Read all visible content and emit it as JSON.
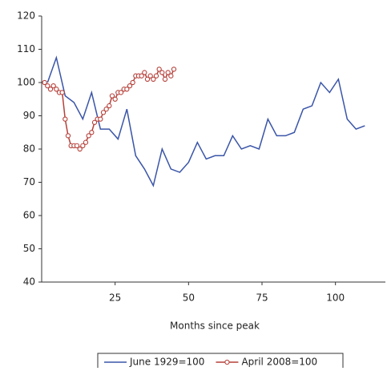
{
  "chart_data": {
    "type": "line",
    "x_label": "Months since peak",
    "xlim": [
      0,
      117
    ],
    "xticks": [
      25,
      50,
      75,
      100
    ],
    "ylim": [
      40,
      120
    ],
    "yticks": [
      40,
      50,
      60,
      70,
      80,
      90,
      100,
      110,
      120
    ],
    "legend": "bottom",
    "series": [
      {
        "name": "June 1929=100",
        "color": "#3a55a8",
        "marker": "none",
        "x": [
          2,
          5,
          8,
          11,
          14,
          17,
          20,
          23,
          26,
          29,
          32,
          35,
          38,
          41,
          44,
          47,
          50,
          53,
          56,
          59,
          62,
          65,
          68,
          71,
          74,
          77,
          80,
          83,
          86,
          89,
          92,
          95,
          98,
          101,
          104,
          107,
          110
        ],
        "values": [
          100,
          107.5,
          96,
          94,
          89,
          97,
          86,
          86,
          83,
          92,
          78,
          74,
          69,
          80,
          74,
          73,
          76,
          82,
          77,
          78,
          78,
          84,
          80,
          81,
          80,
          89,
          84,
          84,
          85,
          92,
          93,
          100,
          97,
          101,
          89,
          86,
          87
        ]
      },
      {
        "name": "April 2008=100",
        "color": "#b5403a",
        "marker": "circle",
        "x": [
          1,
          2,
          3,
          4,
          5,
          6,
          7,
          8,
          9,
          10,
          11,
          12,
          13,
          14,
          15,
          16,
          17,
          18,
          19,
          20,
          21,
          22,
          23,
          24,
          25,
          26,
          27,
          28,
          29,
          30,
          31,
          32,
          33,
          34,
          35,
          36,
          37,
          38,
          39,
          40,
          41,
          42,
          43,
          44,
          45
        ],
        "values": [
          100,
          99,
          98,
          99,
          98,
          97,
          97,
          89,
          84,
          81,
          81,
          81,
          80,
          81,
          82,
          84,
          85,
          88,
          89,
          89,
          91,
          92,
          93,
          96,
          95,
          97,
          97,
          98,
          98,
          99,
          100,
          102,
          102,
          102,
          103,
          101,
          102,
          101,
          102,
          104,
          103,
          101,
          103,
          102,
          104
        ]
      }
    ]
  }
}
